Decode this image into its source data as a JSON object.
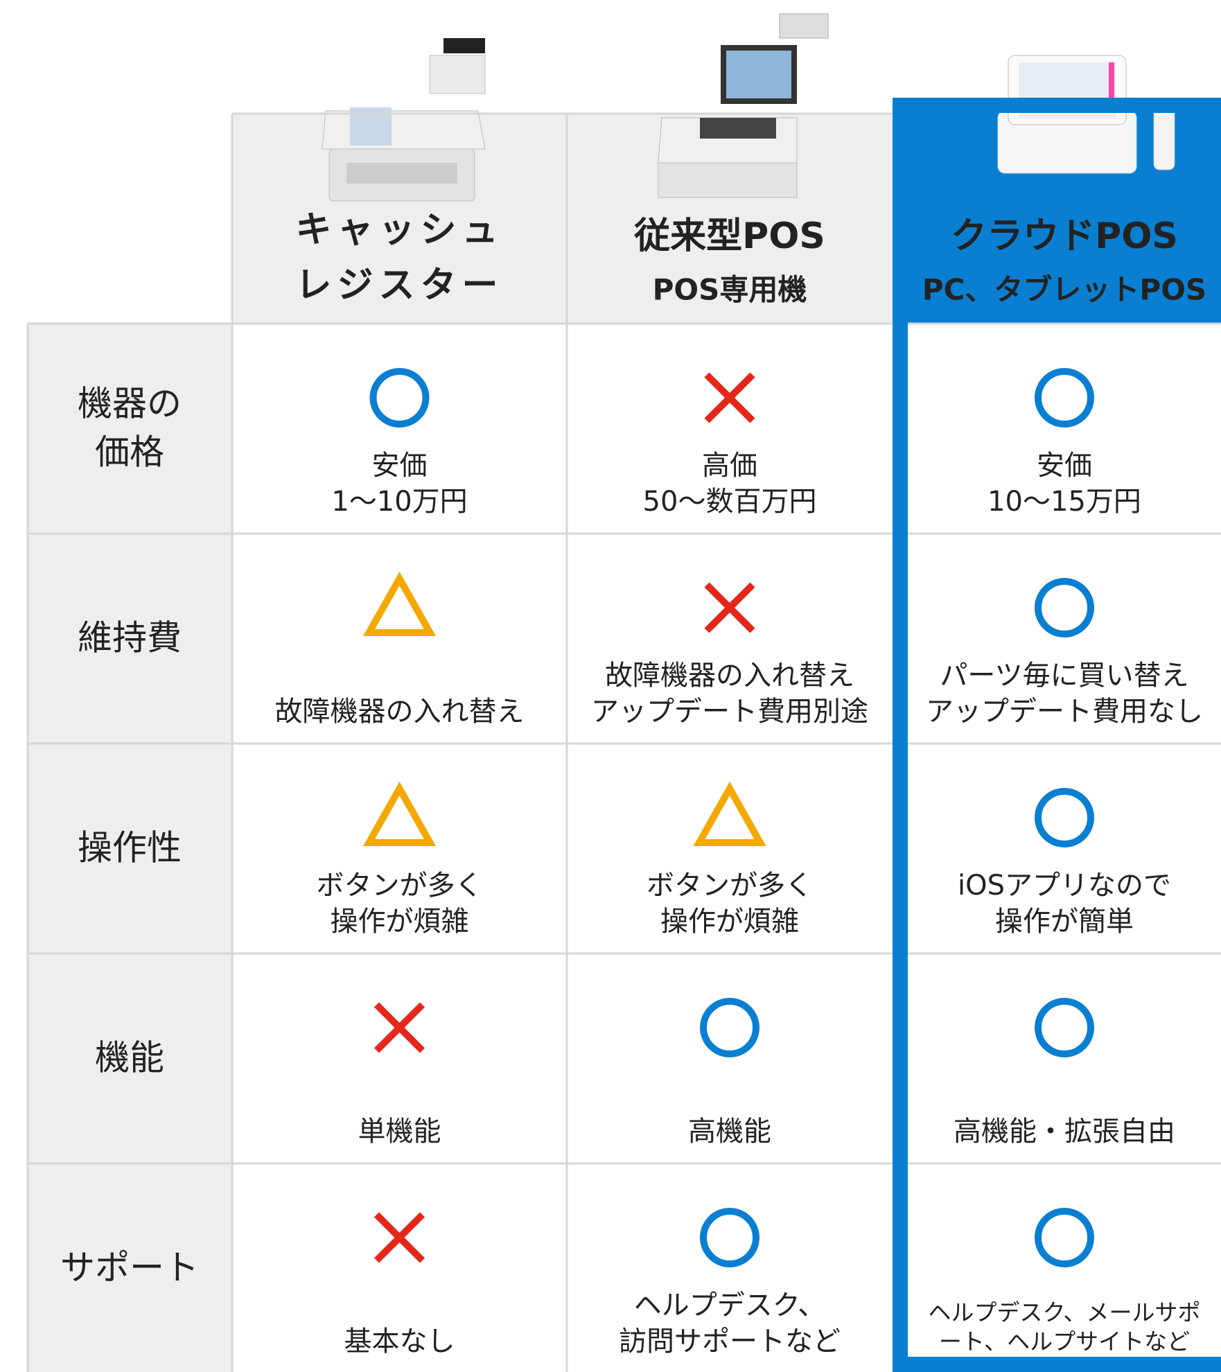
{
  "columns": [
    {
      "title": [
        "キャッシュ",
        "レジスター"
      ]
    },
    {
      "title": [
        "従来型POS"
      ],
      "subtitle": "POS専用機"
    },
    {
      "title": [
        "クラウドPOS"
      ],
      "subtitle": "PC、タブレットPOS"
    }
  ],
  "rows": [
    {
      "label": [
        "機器の",
        "価格"
      ],
      "cells": [
        [
          "安価",
          "1〜10万円"
        ],
        [
          "高価",
          "50〜数百万円"
        ],
        [
          "安価",
          "10〜15万円"
        ]
      ]
    },
    {
      "label": [
        "維持費"
      ],
      "cells": [
        [
          "故障機器の入れ替え"
        ],
        [
          "故障機器の入れ替え",
          "アップデート費用別途"
        ],
        [
          "パーツ毎に買い替え",
          "アップデート費用なし"
        ]
      ]
    },
    {
      "label": [
        "操作性"
      ],
      "cells": [
        [
          "ボタンが多く",
          "操作が煩雑"
        ],
        [
          "ボタンが多く",
          "操作が煩雑"
        ],
        [
          "iOSアプリなので",
          "操作が簡単"
        ]
      ]
    },
    {
      "label": [
        "機能"
      ],
      "cells": [
        [
          "単機能"
        ],
        [
          "高機能"
        ],
        [
          "高機能・拡張自由"
        ]
      ]
    },
    {
      "label": [
        "サポート"
      ],
      "cells": [
        [
          "基本なし"
        ],
        [
          "ヘルプデスク、",
          "訪問サポートなど"
        ],
        [
          "ヘルプデスク、メールサポ",
          "ート、ヘルプサイトなど"
        ]
      ]
    }
  ]
}
